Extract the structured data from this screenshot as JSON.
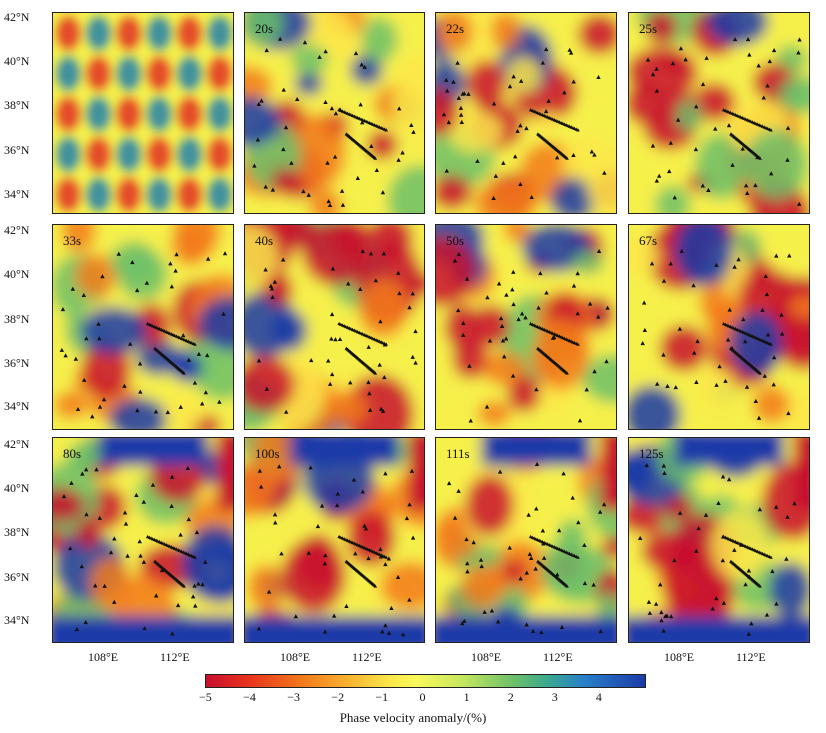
{
  "panels": [
    {
      "label": ""
    },
    {
      "label": "20s"
    },
    {
      "label": "22s"
    },
    {
      "label": "25s"
    },
    {
      "label": "33s"
    },
    {
      "label": "40s"
    },
    {
      "label": "50s"
    },
    {
      "label": "67s"
    },
    {
      "label": "80s"
    },
    {
      "label": "100s"
    },
    {
      "label": "111s"
    },
    {
      "label": "125s"
    }
  ],
  "lat_ticks": [
    "42°N",
    "40°N",
    "38°N",
    "36°N",
    "34°N"
  ],
  "lon_ticks": [
    "108°E",
    "112°E"
  ],
  "colorbar": {
    "title": "Phase velocity anomaly/(%)",
    "ticks": [
      "−5",
      "−4",
      "−3",
      "−2",
      "−1",
      "0",
      "1",
      "2",
      "3",
      "4"
    ],
    "range": [
      -5,
      5
    ],
    "colors": [
      "#c8102e",
      "#f27a1c",
      "#fbe84a",
      "#6cc068",
      "#1a3aa8"
    ]
  },
  "station_symbol": "triangle-icon"
}
